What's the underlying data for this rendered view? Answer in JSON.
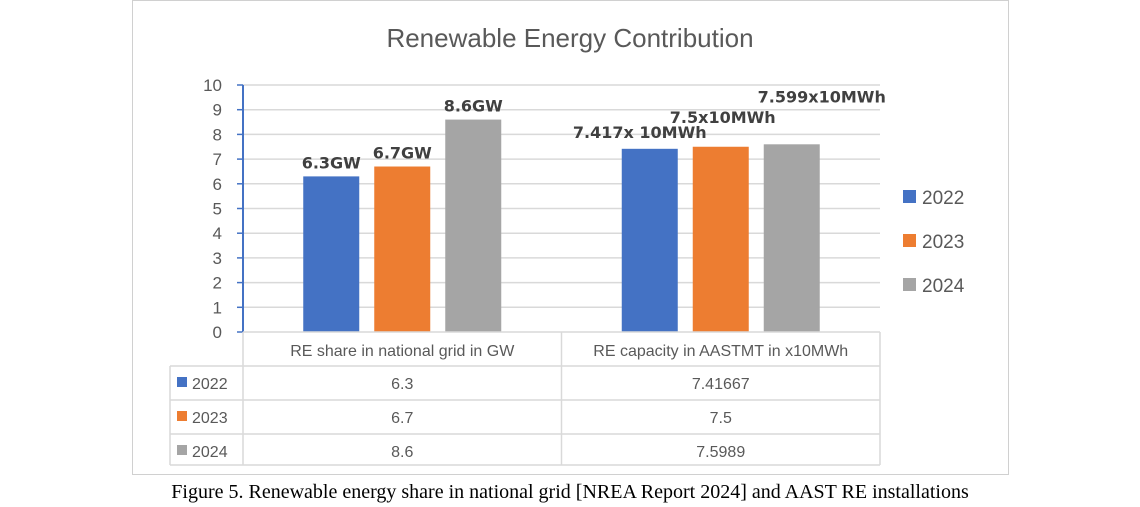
{
  "chart_data": {
    "type": "bar",
    "title": "Renewable Energy Contribution",
    "categories": [
      "RE share in national grid in GW",
      "RE capacity in AASTMT in x10MWh"
    ],
    "series": [
      {
        "name": "2022",
        "values": [
          6.3,
          7.41667
        ],
        "color": "#4472C4",
        "labels": [
          "6.3GW",
          "7.417x 10MWh"
        ],
        "table": [
          "6.3",
          "7.41667"
        ]
      },
      {
        "name": "2023",
        "values": [
          6.7,
          7.5
        ],
        "color": "#ED7D31",
        "labels": [
          "6.7GW",
          "7.5x10MWh"
        ],
        "table": [
          "6.7",
          "7.5"
        ]
      },
      {
        "name": "2024",
        "values": [
          8.6,
          7.5989
        ],
        "color": "#A5A5A5",
        "labels": [
          "8.6GW",
          "7.599x10MWh"
        ],
        "table": [
          "8.6",
          "7.5989"
        ]
      }
    ],
    "ylim": [
      0,
      10
    ],
    "yticks": [
      "0",
      "1",
      "2",
      "3",
      "4",
      "5",
      "6",
      "7",
      "8",
      "9",
      "10"
    ],
    "grid": true,
    "legend": "right",
    "data_table": true
  },
  "caption": "Figure 5.  Renewable energy share in national grid [NREA Report 2024] and AAST RE installations"
}
